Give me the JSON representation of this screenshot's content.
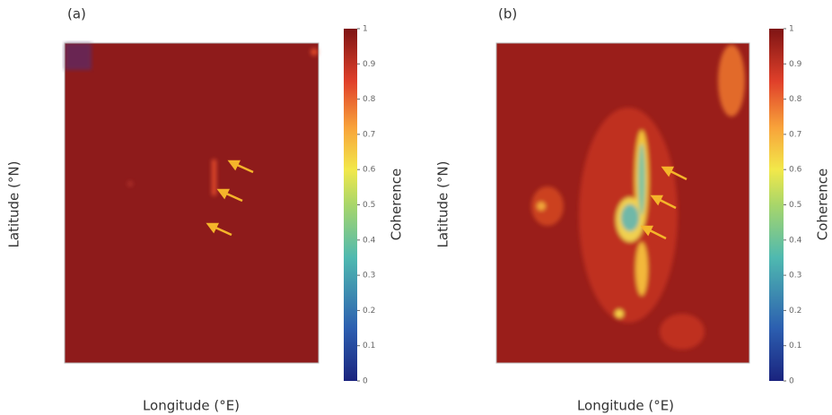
{
  "panels": [
    {
      "label": "(a)",
      "xlabel": "Longitude (°E)",
      "ylabel": "Latitude (°N)",
      "colorbar": {
        "label": "Coherence",
        "lim": [
          0,
          1
        ],
        "ticks": [
          0,
          0.1,
          0.2,
          0.3,
          0.4,
          0.5,
          0.6,
          0.7,
          0.8,
          0.9,
          1
        ]
      }
    },
    {
      "label": "(b)",
      "xlabel": "Longitude (°E)",
      "ylabel": "Latitude (°N)",
      "colorbar": {
        "label": "Coherence",
        "lim": [
          0,
          1
        ],
        "ticks": [
          0,
          0.1,
          0.2,
          0.3,
          0.4,
          0.5,
          0.6,
          0.7,
          0.8,
          0.9,
          1
        ]
      }
    }
  ]
}
